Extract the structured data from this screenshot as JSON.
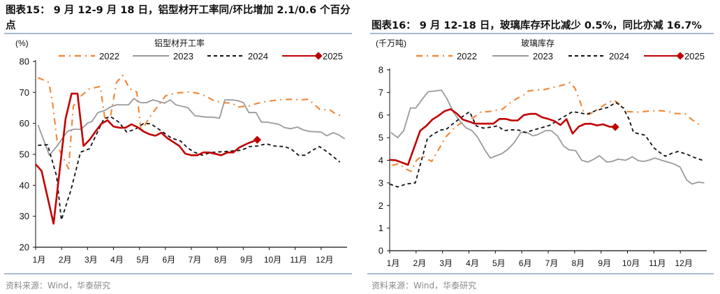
{
  "left": {
    "figure_title_line1": "图表15：  9 月 12-9 月 18 日，铝型材开工率同/环比增加 2.1/0.6 个百分",
    "figure_title_line2": "点",
    "source": "资料来源：Wind，华泰研究"
  },
  "right": {
    "figure_title": "图表16：  9 月 12-18 日，玻璃库存环比减少 0.5%，同比亦减 16.7%",
    "source": "资料来源：Wind，华泰研究"
  },
  "chart_data": [
    {
      "type": "line",
      "title": "铝型材开工率",
      "ylabel": "(%)",
      "ylim": [
        20,
        80
      ],
      "yticks": [
        20,
        30,
        40,
        50,
        60,
        70,
        80
      ],
      "xlim": [
        1,
        53
      ],
      "xtick_labels": [
        "1月",
        "2月",
        "3月",
        "4月",
        "5月",
        "6月",
        "7月",
        "8月",
        "9月",
        "10月",
        "11月",
        "12月"
      ],
      "grid": false,
      "legend": "top",
      "series": [
        {
          "name": "2022",
          "color": "#f08a3c",
          "style": "dashdot",
          "x": [
            1.4,
            3.2,
            3.8,
            4.7,
            6.5,
            7.3,
            8.5,
            10,
            11.8,
            12.6,
            13.5,
            14.5,
            15.5,
            16.7,
            17.9,
            18.6,
            20,
            21.4,
            22.7,
            24.4,
            26.4,
            27.9,
            29.3,
            30.7,
            32.3,
            33.8,
            34.8,
            36.6,
            38.1,
            39.6,
            41.6,
            43.8,
            45.3,
            46.5,
            47.6,
            48.5,
            50.1,
            51.3,
            52.5
          ],
          "y": [
            74.8,
            73.2,
            67.1,
            52.5,
            45.3,
            65.6,
            68.7,
            71.2,
            71.9,
            61,
            62.2,
            73.2,
            75.5,
            71.2,
            70.1,
            57.4,
            61.9,
            65.6,
            68.9,
            69.8,
            70.1,
            69.8,
            68.9,
            67.4,
            66.7,
            66.5,
            65.3,
            65.6,
            66.5,
            67.1,
            67.6,
            67.8,
            67.6,
            67.8,
            66,
            64.4,
            64.4,
            62.8,
            62.4
          ]
        },
        {
          "name": "2023",
          "color": "#9a9a9a",
          "style": "solid",
          "x": [
            1.4,
            3.3,
            4.5,
            6.3,
            7.3,
            8.6,
            9.7,
            10.4,
            11.4,
            12.6,
            13.5,
            14.5,
            16.5,
            17.4,
            18.5,
            19.5,
            20.6,
            22.5,
            23.5,
            24.4,
            26.4,
            27.6,
            29.6,
            30.5,
            31.7,
            32.6,
            33.7,
            34.6,
            35.7,
            36.6,
            37.8,
            38.7,
            39.6,
            41.6,
            42.6,
            43.6,
            44.7,
            45.7,
            46.7,
            48.7,
            49.6,
            50.7,
            51.6,
            52.6
          ],
          "y": [
            59.5,
            49.7,
            52.5,
            57.4,
            58.1,
            58.1,
            60.1,
            60.6,
            63.5,
            64.2,
            65.3,
            66,
            66,
            68,
            66.7,
            66.7,
            67.6,
            66.5,
            67.6,
            66,
            65.1,
            62.5,
            62,
            62,
            61.7,
            67.6,
            67.6,
            67.4,
            66.7,
            63.5,
            63.5,
            60.4,
            60.4,
            59.7,
            58.6,
            58.3,
            58.8,
            57.9,
            57.4,
            57.2,
            56,
            57,
            56.3,
            55
          ]
        },
        {
          "name": "2024",
          "color": "#111111",
          "style": "dashed",
          "x": [
            1.4,
            3,
            4.5,
            5.3,
            6.9,
            8.5,
            10,
            12.4,
            13.5,
            14.9,
            16.2,
            17.6,
            19,
            20.2,
            22.1,
            23.7,
            25.2,
            26.4,
            27.6,
            28.8,
            30.3,
            32.6,
            35.4,
            36.7,
            38.1,
            39.5,
            40.8,
            42.5,
            43.6,
            44.9,
            46,
            47.2,
            48.4,
            49.8,
            51.8
          ],
          "y": [
            52.9,
            53.1,
            43,
            28.8,
            38.5,
            50.7,
            51.8,
            61.5,
            62.2,
            60.4,
            57.2,
            58.1,
            59.9,
            59.9,
            57.4,
            55.2,
            54.3,
            52,
            50.6,
            49.7,
            50.6,
            50.9,
            51.3,
            52.5,
            52.7,
            53.4,
            52.7,
            52.5,
            51.8,
            49.7,
            49.7,
            51.3,
            52.5,
            50.6,
            47.5
          ]
        },
        {
          "name": "2025",
          "color": "#c00000",
          "style": "solid-marker-end",
          "x": [
            1,
            2,
            4,
            6,
            7,
            8,
            9,
            10,
            11,
            12,
            13,
            14,
            15,
            16,
            17,
            18,
            19,
            20,
            21,
            22,
            23,
            25,
            26,
            27,
            28,
            29,
            30,
            32,
            33,
            34,
            35,
            36.5,
            38
          ],
          "y": [
            46.8,
            44.6,
            27.6,
            61.5,
            69.6,
            69.6,
            52.7,
            54.7,
            57.4,
            59.9,
            61,
            59,
            58.6,
            58.6,
            59.7,
            58.8,
            57.4,
            56.5,
            56,
            57,
            55.2,
            52.7,
            50.2,
            49.7,
            49.7,
            50.6,
            50.6,
            49.7,
            50.6,
            50.6,
            52.2,
            53.6,
            54.7
          ]
        }
      ]
    },
    {
      "type": "line",
      "title": "玻璃库存",
      "ylabel": "(千万吨)",
      "ylim": [
        0,
        8
      ],
      "yticks": [
        0,
        1,
        2,
        3,
        4,
        5,
        6,
        7,
        8
      ],
      "xlim": [
        1,
        53
      ],
      "xtick_labels": [
        "1月",
        "2月",
        "3月",
        "4月",
        "5月",
        "6月",
        "7月",
        "8月",
        "9月",
        "10月",
        "11月",
        "12月"
      ],
      "grid": false,
      "legend": "top",
      "series": [
        {
          "name": "2022",
          "color": "#f08a3c",
          "style": "dashdot",
          "x": [
            1.4,
            2.5,
            3.5,
            4.5,
            5.4,
            6.4,
            7.2,
            7.9,
            9.1,
            10.2,
            11.4,
            12.5,
            13.7,
            14.8,
            16,
            17.2,
            18.1,
            19.5,
            20.6,
            21.8,
            22.9,
            23.7,
            24.8,
            26.4,
            27.9,
            29.5,
            30.6,
            31.4,
            32.2,
            32.8,
            33.7,
            34.8,
            36.4,
            37.7,
            39.1,
            40,
            41.8,
            43.3,
            45,
            46.4,
            47.9,
            49.5,
            50.6,
            52.1
          ],
          "y": [
            3.77,
            3.85,
            3.64,
            3.51,
            4.0,
            4.2,
            4.05,
            3.95,
            4.51,
            5.03,
            5.38,
            5.62,
            5.74,
            5.9,
            6.15,
            6.15,
            6.2,
            6.26,
            6.51,
            6.72,
            6.87,
            7.06,
            7.1,
            7.13,
            7.23,
            7.33,
            7.44,
            7.18,
            6.62,
            6.15,
            6.03,
            6.2,
            6.48,
            6.67,
            6.41,
            6.15,
            6.13,
            6.17,
            6.2,
            6.17,
            6.07,
            6.05,
            5.79,
            5.52
          ]
        },
        {
          "name": "2023",
          "color": "#9a9a9a",
          "style": "solid",
          "x": [
            1.2,
            2.3,
            3.3,
            4.4,
            5.3,
            6.4,
            7.3,
            8.3,
            9.5,
            10.4,
            11.4,
            12.3,
            13.5,
            14.5,
            15.4,
            16.6,
            17.5,
            18.5,
            19.5,
            20.4,
            21.4,
            22.5,
            23.5,
            24.5,
            25.2,
            26.6,
            27.5,
            28.5,
            29.5,
            30.4,
            31.5,
            32.5,
            33.5,
            34.5,
            35.4,
            36.6,
            37.5,
            38.5,
            39.7,
            40.8,
            41.8,
            42.7,
            43.7,
            44.5,
            45.6,
            47.5,
            48.6,
            49.7,
            50.6,
            51.6,
            52.6
          ],
          "y": [
            5.23,
            5.0,
            5.31,
            6.31,
            6.31,
            6.72,
            7.03,
            7.06,
            7.1,
            6.72,
            6.15,
            5.8,
            5.44,
            5.31,
            5.03,
            4.46,
            4.1,
            4.2,
            4.31,
            4.49,
            4.77,
            5.23,
            5.23,
            5.08,
            5.13,
            5.31,
            5.31,
            5.08,
            4.64,
            4.46,
            4.43,
            4.0,
            3.92,
            4.05,
            4.2,
            3.92,
            3.95,
            4.05,
            4.0,
            4.15,
            3.98,
            3.95,
            4.02,
            4.1,
            4.0,
            3.85,
            3.71,
            3.13,
            2.95,
            3.03,
            3.0
          ]
        },
        {
          "name": "2024",
          "color": "#111111",
          "style": "dashed",
          "x": [
            1,
            2.3,
            3.7,
            5.2,
            7.2,
            8.3,
            9.5,
            10.2,
            11.4,
            12.5,
            14.1,
            15.2,
            16.4,
            17.5,
            18.7,
            19.8,
            21,
            22.2,
            23.3,
            24.5,
            27.2,
            29.1,
            31,
            32.2,
            33.3,
            34.8,
            36.8,
            38.1,
            39.3,
            40.2,
            41,
            42.9,
            44.3,
            45.2,
            46.2,
            47.3,
            48.3,
            49.8,
            51,
            52.5
          ],
          "y": [
            2.95,
            2.82,
            2.95,
            3.0,
            4.97,
            5.18,
            5.35,
            5.35,
            5.62,
            5.85,
            6.15,
            5.52,
            5.42,
            5.46,
            5.52,
            5.31,
            5.35,
            5.33,
            5.23,
            5.33,
            5.54,
            5.85,
            6.15,
            6.1,
            6.03,
            6.2,
            6.34,
            6.56,
            6.31,
            5.85,
            5.23,
            5.11,
            4.56,
            4.36,
            4.18,
            4.31,
            4.39,
            4.26,
            4.12,
            3.98
          ]
        },
        {
          "name": "2025",
          "color": "#c00000",
          "style": "solid-marker-end",
          "x": [
            1,
            2,
            3,
            4,
            6,
            7,
            8,
            9,
            10,
            11,
            12,
            13,
            14,
            15,
            16,
            18,
            19,
            20,
            21,
            22,
            23,
            24,
            25,
            26,
            27,
            28,
            29,
            30,
            31,
            32,
            33,
            34,
            35,
            36,
            37,
            38
          ],
          "y": [
            4.02,
            4.0,
            3.9,
            3.8,
            5.31,
            5.52,
            5.8,
            5.97,
            6.17,
            6.26,
            6.07,
            5.8,
            5.71,
            5.62,
            5.62,
            5.62,
            5.83,
            5.83,
            5.76,
            5.76,
            6.0,
            6.05,
            6.05,
            5.9,
            5.83,
            5.74,
            5.56,
            5.82,
            5.18,
            5.49,
            5.61,
            5.62,
            5.54,
            5.59,
            5.49,
            5.47
          ]
        }
      ]
    }
  ]
}
